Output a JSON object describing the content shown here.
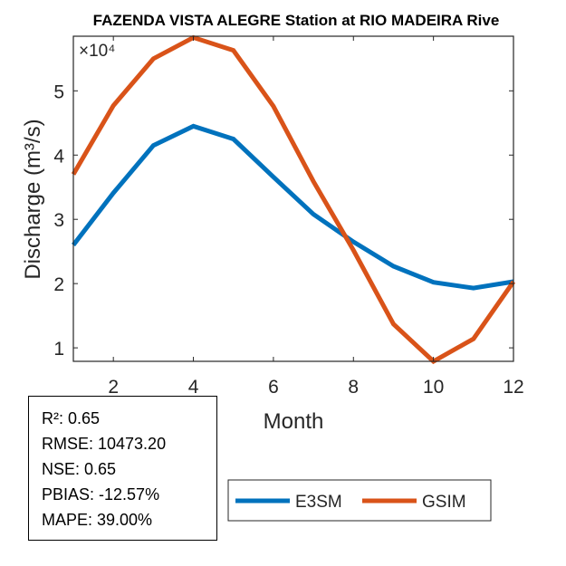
{
  "chart_data": {
    "type": "line",
    "title": "FAZENDA VISTA ALEGRE  Station at  RIO MADEIRA  Rive",
    "xlabel": "Month",
    "ylabel": "Discharge (m³/s)",
    "y_exponent_label": "×10⁴",
    "x": [
      1,
      2,
      3,
      4,
      5,
      6,
      7,
      8,
      9,
      10,
      11,
      12
    ],
    "xlim": [
      1,
      12
    ],
    "ylim": [
      0.79,
      5.85
    ],
    "y_scale": 10000,
    "xticks": [
      2,
      4,
      6,
      8,
      10,
      12
    ],
    "yticks": [
      1,
      2,
      3,
      4,
      5
    ],
    "grid": false,
    "legend_position": "bottom-center",
    "series": [
      {
        "name": "E3SM",
        "color": "#0072BD",
        "values": [
          2.6,
          3.41,
          4.15,
          4.45,
          4.25,
          3.66,
          3.08,
          2.65,
          2.27,
          2.02,
          1.93,
          2.03
        ]
      },
      {
        "name": "GSIM",
        "color": "#D95319",
        "values": [
          3.7,
          4.77,
          5.5,
          5.83,
          5.63,
          4.76,
          3.59,
          2.52,
          1.37,
          0.79,
          1.14,
          2.03
        ]
      }
    ]
  },
  "stats": {
    "r2": "R²: 0.65",
    "rmse": "RMSE: 10473.20",
    "nse": "NSE: 0.65",
    "pbias": "PBIAS: -12.57%",
    "mape": "MAPE: 39.00%"
  }
}
